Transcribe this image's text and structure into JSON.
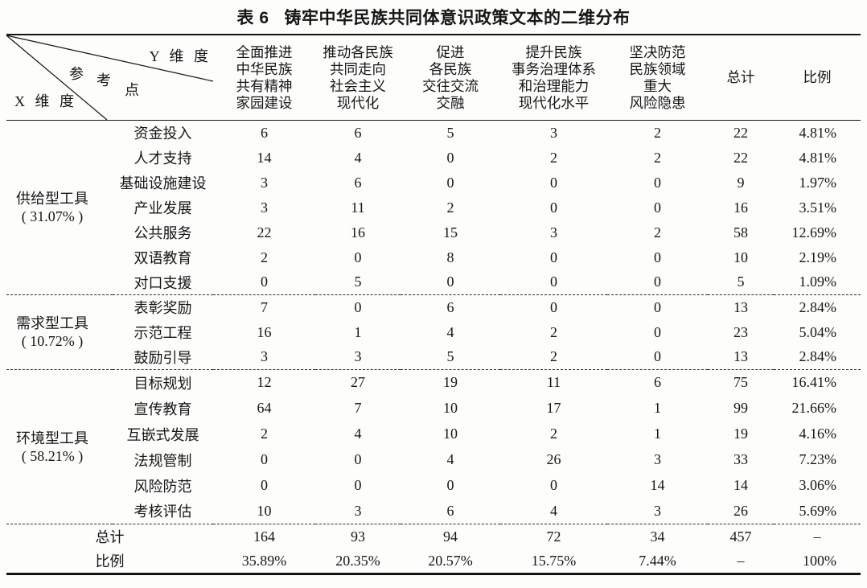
{
  "title": "表 6   铸牢中华民族共同体意识政策文本的二维分布",
  "corner": {
    "y_axis": "Y 维 度",
    "mid_chars": [
      "参",
      "考",
      "点"
    ],
    "x_axis": "X 维 度"
  },
  "columns": [
    {
      "label": "全面推进\n中华民族\n共有精神\n家园建设"
    },
    {
      "label": "推动各民族\n共同走向\n社会主义\n现代化"
    },
    {
      "label": "促进\n各民族\n交往交流\n交融"
    },
    {
      "label": "提升民族\n事务治理体系\n和治理能力\n现代化水平"
    },
    {
      "label": "坚决防范\n民族领域\n重大\n风险隐患"
    },
    {
      "label": "总计"
    },
    {
      "label": "比例"
    }
  ],
  "groups": [
    {
      "name": "供给型工具",
      "pct": "( 31.07% )",
      "rows": [
        {
          "label": "资金投入",
          "values": [
            "6",
            "6",
            "5",
            "3",
            "2",
            "22",
            "4.81%"
          ]
        },
        {
          "label": "人才支持",
          "values": [
            "14",
            "4",
            "0",
            "2",
            "2",
            "22",
            "4.81%"
          ]
        },
        {
          "label": "基础设施建设",
          "values": [
            "3",
            "6",
            "0",
            "0",
            "0",
            "9",
            "1.97%"
          ]
        },
        {
          "label": "产业发展",
          "values": [
            "3",
            "11",
            "2",
            "0",
            "0",
            "16",
            "3.51%"
          ]
        },
        {
          "label": "公共服务",
          "values": [
            "22",
            "16",
            "15",
            "3",
            "2",
            "58",
            "12.69%"
          ]
        },
        {
          "label": "双语教育",
          "values": [
            "2",
            "0",
            "8",
            "0",
            "0",
            "10",
            "2.19%"
          ]
        },
        {
          "label": "对口支援",
          "values": [
            "0",
            "5",
            "0",
            "0",
            "0",
            "5",
            "1.09%"
          ]
        }
      ]
    },
    {
      "name": "需求型工具",
      "pct": "( 10.72% )",
      "rows": [
        {
          "label": "表彰奖励",
          "values": [
            "7",
            "0",
            "6",
            "0",
            "0",
            "13",
            "2.84%"
          ]
        },
        {
          "label": "示范工程",
          "values": [
            "16",
            "1",
            "4",
            "2",
            "0",
            "23",
            "5.04%"
          ]
        },
        {
          "label": "鼓励引导",
          "values": [
            "3",
            "3",
            "5",
            "2",
            "0",
            "13",
            "2.84%"
          ]
        }
      ]
    },
    {
      "name": "环境型工具",
      "pct": "( 58.21% )",
      "rows": [
        {
          "label": "目标规划",
          "values": [
            "12",
            "27",
            "19",
            "11",
            "6",
            "75",
            "16.41%"
          ]
        },
        {
          "label": "宣传教育",
          "values": [
            "64",
            "7",
            "10",
            "17",
            "1",
            "99",
            "21.66%"
          ]
        },
        {
          "label": "互嵌式发展",
          "values": [
            "2",
            "4",
            "10",
            "2",
            "1",
            "19",
            "4.16%"
          ]
        },
        {
          "label": "法规管制",
          "values": [
            "0",
            "0",
            "4",
            "26",
            "3",
            "33",
            "7.23%"
          ]
        },
        {
          "label": "风险防范",
          "values": [
            "0",
            "0",
            "0",
            "0",
            "14",
            "14",
            "3.06%"
          ]
        },
        {
          "label": "考核评估",
          "values": [
            "10",
            "3",
            "6",
            "4",
            "3",
            "26",
            "5.69%"
          ]
        }
      ]
    }
  ],
  "footer_rows": [
    {
      "label": "总计",
      "values": [
        "164",
        "93",
        "94",
        "72",
        "34",
        "457",
        "–"
      ]
    },
    {
      "label": "比例",
      "values": [
        "35.89%",
        "20.35%",
        "20.57%",
        "15.75%",
        "7.44%",
        "–",
        "100%"
      ]
    }
  ]
}
